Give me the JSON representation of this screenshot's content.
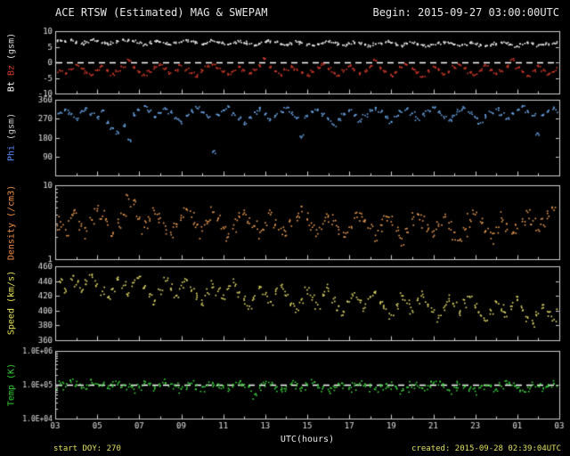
{
  "chart_data": {
    "type": "scatter",
    "title": "ACE RTSW (Estimated) MAG & SWEPAM",
    "begin_label": "Begin: 2015-09-27 03:00:00UTC",
    "xlabel": "UTC(hours)",
    "footer_left": "start DOY: 270",
    "footer_right": "created: 2015-09-28 02:39:04UTC",
    "x_range_hours": [
      0,
      24
    ],
    "x_ticks": [
      "03",
      "05",
      "07",
      "09",
      "11",
      "13",
      "15",
      "17",
      "19",
      "21",
      "23",
      "01",
      "03"
    ],
    "frame_color": "#cfcfcf",
    "tick_label_color": "#e0e0e0",
    "panels": [
      {
        "name": "mag",
        "scale": "linear",
        "ylim": [
          -10,
          10
        ],
        "jitter": 0.045,
        "dashed_line_y": 0,
        "yticks": [
          {
            "v": 10,
            "label": "10"
          },
          {
            "v": 5,
            "label": "5"
          },
          {
            "v": 0,
            "label": "0"
          },
          {
            "v": -5,
            "label": "-5"
          },
          {
            "v": -10,
            "label": "-10"
          }
        ],
        "ylabel_segments": [
          {
            "text": "Bt ",
            "color": "#ffffff"
          },
          {
            "text": "Bz ",
            "color": "#d03a2a"
          },
          {
            "text": "(gsm)",
            "color": "#dddddd"
          }
        ],
        "series": [
          {
            "name": "Bt",
            "color": "#f0f0f0",
            "values": [
              6.8,
              7.1,
              6.5,
              7.0,
              6.4,
              5.9,
              6.6,
              7.2,
              6.9,
              6.3,
              5.8,
              6.2,
              6.7,
              7.3,
              7.0,
              6.6,
              6.1,
              5.7,
              6.3,
              6.8,
              6.5,
              6.0,
              5.6,
              6.1,
              6.6,
              7.0,
              6.7,
              6.2,
              5.8,
              6.4,
              6.9,
              6.5,
              6.1,
              5.7,
              6.2,
              6.6,
              6.3,
              5.9,
              5.5,
              6.0,
              6.5,
              6.8,
              6.4,
              6.0,
              5.6,
              6.1,
              6.5,
              6.2,
              5.8,
              5.4,
              5.9,
              6.3,
              6.7,
              6.3,
              5.9,
              5.5,
              6.0,
              6.4,
              6.1,
              5.7,
              5.3,
              5.8,
              6.2,
              6.6,
              6.2,
              5.8,
              5.4,
              5.9,
              6.3,
              6.0,
              5.6,
              5.2,
              5.7,
              6.1,
              6.5,
              6.1,
              5.7,
              5.3,
              5.8,
              6.2,
              5.9,
              5.5,
              5.1,
              5.6,
              6.0,
              6.4,
              6.0,
              5.6,
              5.2,
              5.7,
              6.1,
              5.8,
              5.4,
              5.6,
              5.9,
              6.2,
              6.4
            ]
          },
          {
            "name": "Bz",
            "color": "#d03a2a",
            "values": [
              -1.5,
              -2.8,
              -3.5,
              -2.2,
              -0.8,
              -1.9,
              -3.2,
              -4.1,
              -2.6,
              -1.2,
              -2.4,
              -3.8,
              -2.9,
              -1.6,
              0.8,
              -1.8,
              -3.0,
              -4.2,
              -3.1,
              -1.7,
              -0.9,
              -2.1,
              -3.4,
              -2.5,
              -1.1,
              -2.3,
              -3.6,
              -4.4,
              -2.8,
              -1.4,
              -0.6,
              -1.9,
              -3.1,
              -4.0,
              -2.7,
              -1.3,
              -2.5,
              -3.7,
              -2.6,
              -1.0,
              1.2,
              -1.7,
              -2.9,
              -3.9,
              -2.4,
              -1.1,
              -2.2,
              -3.5,
              -4.3,
              -2.9,
              -1.5,
              -0.7,
              -2.0,
              -3.3,
              -4.1,
              -2.6,
              -1.2,
              -2.4,
              -3.6,
              -2.8,
              -1.4,
              0.6,
              -1.8,
              -3.0,
              -4.2,
              -3.0,
              -1.6,
              -0.8,
              -2.1,
              -3.4,
              -4.5,
              -2.7,
              -1.3,
              -2.5,
              -3.8,
              -2.9,
              -1.5,
              -0.7,
              -1.9,
              -3.2,
              -4.0,
              -2.5,
              -1.1,
              -2.3,
              -3.5,
              -2.7,
              -1.3,
              1.0,
              -1.8,
              -3.1,
              -4.3,
              -2.8,
              -1.4,
              -2.6,
              -3.9,
              -3.0,
              -1.6
            ]
          }
        ]
      },
      {
        "name": "phi",
        "scale": "linear",
        "ylim": [
          0,
          360
        ],
        "jitter": 0.05,
        "dashed_line_y": null,
        "yticks": [
          {
            "v": 360,
            "label": "360"
          },
          {
            "v": 270,
            "label": "270"
          },
          {
            "v": 180,
            "label": "180"
          },
          {
            "v": 90,
            "label": "90"
          }
        ],
        "ylabel_segments": [
          {
            "text": "Phi ",
            "color": "#5c8cff"
          },
          {
            "text": "(gsm)",
            "color": "#cccccc"
          }
        ],
        "series": [
          {
            "name": "Phi",
            "color": "#6aa6e8",
            "values": [
              285,
              300,
              315,
              290,
              270,
              305,
              320,
              295,
              275,
              310,
              250,
              225,
              205,
              235,
              170,
              290,
              310,
              330,
              305,
              280,
              295,
              315,
              300,
              275,
              255,
              285,
              305,
              320,
              300,
              280,
              110,
              290,
              310,
              325,
              295,
              270,
              245,
              275,
              300,
              315,
              290,
              265,
              285,
              305,
              320,
              295,
              270,
              185,
              280,
              300,
              315,
              290,
              265,
              240,
              270,
              295,
              310,
              285,
              260,
              285,
              305,
              320,
              300,
              275,
              255,
              280,
              300,
              315,
              295,
              270,
              290,
              310,
              325,
              300,
              280,
              260,
              285,
              305,
              320,
              295,
              275,
              250,
              280,
              300,
              315,
              290,
              270,
              295,
              310,
              330,
              305,
              285,
              200,
              290,
              310,
              320,
              300
            ]
          }
        ]
      },
      {
        "name": "density",
        "scale": "log",
        "ylim": [
          1,
          10
        ],
        "jitter": 0.22,
        "dashed_line_y": null,
        "yticks": [
          {
            "v": 10,
            "label": "10"
          },
          {
            "v": 1,
            "label": "1"
          }
        ],
        "ylabel_segments": [
          {
            "text": "Density ",
            "color": "#f09048"
          },
          {
            "text": "(/cm3)",
            "color": "#f09048"
          }
        ],
        "series": [
          {
            "name": "Density",
            "color": "#f0a055",
            "values": [
              2.8,
              3.2,
              2.5,
              3.6,
              4.2,
              3.0,
              2.4,
              3.4,
              4.5,
              3.8,
              2.9,
              2.2,
              3.1,
              4.0,
              6.5,
              5.5,
              3.5,
              2.7,
              3.3,
              4.1,
              3.6,
              2.8,
              2.3,
              3.0,
              3.9,
              4.8,
              3.7,
              2.9,
              2.4,
              3.2,
              4.3,
              3.5,
              2.7,
              2.2,
              2.9,
              3.8,
              4.6,
              3.6,
              2.8,
              2.3,
              3.1,
              4.0,
              3.4,
              2.6,
              2.1,
              2.8,
              3.7,
              4.4,
              3.5,
              2.7,
              2.2,
              3.0,
              3.9,
              3.3,
              2.5,
              2.0,
              2.7,
              3.6,
              4.2,
              3.4,
              2.6,
              2.1,
              2.9,
              3.8,
              3.2,
              2.4,
              1.9,
              2.6,
              3.5,
              4.1,
              3.3,
              2.5,
              2.0,
              2.8,
              3.7,
              3.1,
              2.3,
              1.8,
              2.5,
              3.4,
              4.0,
              3.2,
              2.4,
              1.9,
              2.7,
              3.6,
              3.0,
              2.2,
              2.6,
              3.5,
              4.3,
              3.3,
              2.5,
              2.9,
              3.8,
              4.6,
              3.4
            ]
          }
        ]
      },
      {
        "name": "speed",
        "scale": "linear",
        "ylim": [
          360,
          460
        ],
        "jitter": 0.12,
        "dashed_line_y": null,
        "yticks": [
          {
            "v": 460,
            "label": "460"
          },
          {
            "v": 440,
            "label": "440"
          },
          {
            "v": 420,
            "label": "420"
          },
          {
            "v": 400,
            "label": "400"
          },
          {
            "v": 380,
            "label": "380"
          },
          {
            "v": 360,
            "label": "360"
          }
        ],
        "ylabel_segments": [
          {
            "text": "Speed ",
            "color": "#e8e455"
          },
          {
            "text": "(km/s)",
            "color": "#e8e455"
          }
        ],
        "series": [
          {
            "name": "Speed",
            "color": "#e8e06a",
            "values": [
              432,
              438,
              428,
              443,
              435,
              425,
              440,
              448,
              436,
              426,
              418,
              430,
              442,
              434,
              424,
              438,
              446,
              432,
              422,
              414,
              428,
              440,
              430,
              420,
              434,
              442,
              428,
              418,
              410,
              424,
              436,
              426,
              416,
              430,
              438,
              424,
              414,
              406,
              420,
              432,
              422,
              412,
              426,
              434,
              420,
              410,
              402,
              416,
              428,
              418,
              408,
              422,
              430,
              416,
              406,
              398,
              412,
              424,
              414,
              404,
              418,
              426,
              412,
              402,
              394,
              408,
              420,
              410,
              400,
              414,
              422,
              408,
              398,
              390,
              404,
              416,
              406,
              396,
              410,
              418,
              404,
              394,
              386,
              400,
              412,
              402,
              392,
              406,
              414,
              400,
              390,
              382,
              396,
              408,
              398,
              388,
              402
            ]
          }
        ]
      },
      {
        "name": "temp",
        "scale": "log",
        "ylim": [
          10000,
          1000000
        ],
        "jitter": 0.28,
        "dashed_line_y": 100000,
        "yticks": [
          {
            "v": 1000000,
            "label": "1.0E+06"
          },
          {
            "v": 100000,
            "label": "1.0E+05"
          },
          {
            "v": 10000,
            "label": "1.0E+04"
          }
        ],
        "ylabel_segments": [
          {
            "text": "Temp ",
            "color": "#33cc33"
          },
          {
            "text": "(K)",
            "color": "#33cc33"
          }
        ],
        "series": [
          {
            "name": "Temp",
            "color": "#3dd63d",
            "values": [
              95000,
              110000,
              88000,
              120000,
              102000,
              85000,
              98000,
              115000,
              105000,
              92000,
              78000,
              96000,
              112000,
              100000,
              86000,
              74000,
              90000,
              108000,
              98000,
              84000,
              96000,
              114000,
              104000,
              90000,
              76000,
              94000,
              110000,
              100000,
              86000,
              98000,
              116000,
              106000,
              92000,
              78000,
              96000,
              112000,
              102000,
              88000,
              52000,
              92000,
              108000,
              98000,
              84000,
              70000,
              88000,
              104000,
              94000,
              80000,
              96000,
              112000,
              100000,
              86000,
              72000,
              90000,
              106000,
              96000,
              82000,
              94000,
              110000,
              100000,
              86000,
              72000,
              88000,
              104000,
              94000,
              80000,
              66000,
              84000,
              100000,
              92000,
              78000,
              94000,
              108000,
              98000,
              84000,
              70000,
              86000,
              102000,
              92000,
              78000,
              64000,
              82000,
              98000,
              88000,
              74000,
              90000,
              106000,
              96000,
              82000,
              68000,
              84000,
              100000,
              90000,
              76000,
              92000,
              108000,
              120000
            ]
          }
        ]
      }
    ]
  }
}
